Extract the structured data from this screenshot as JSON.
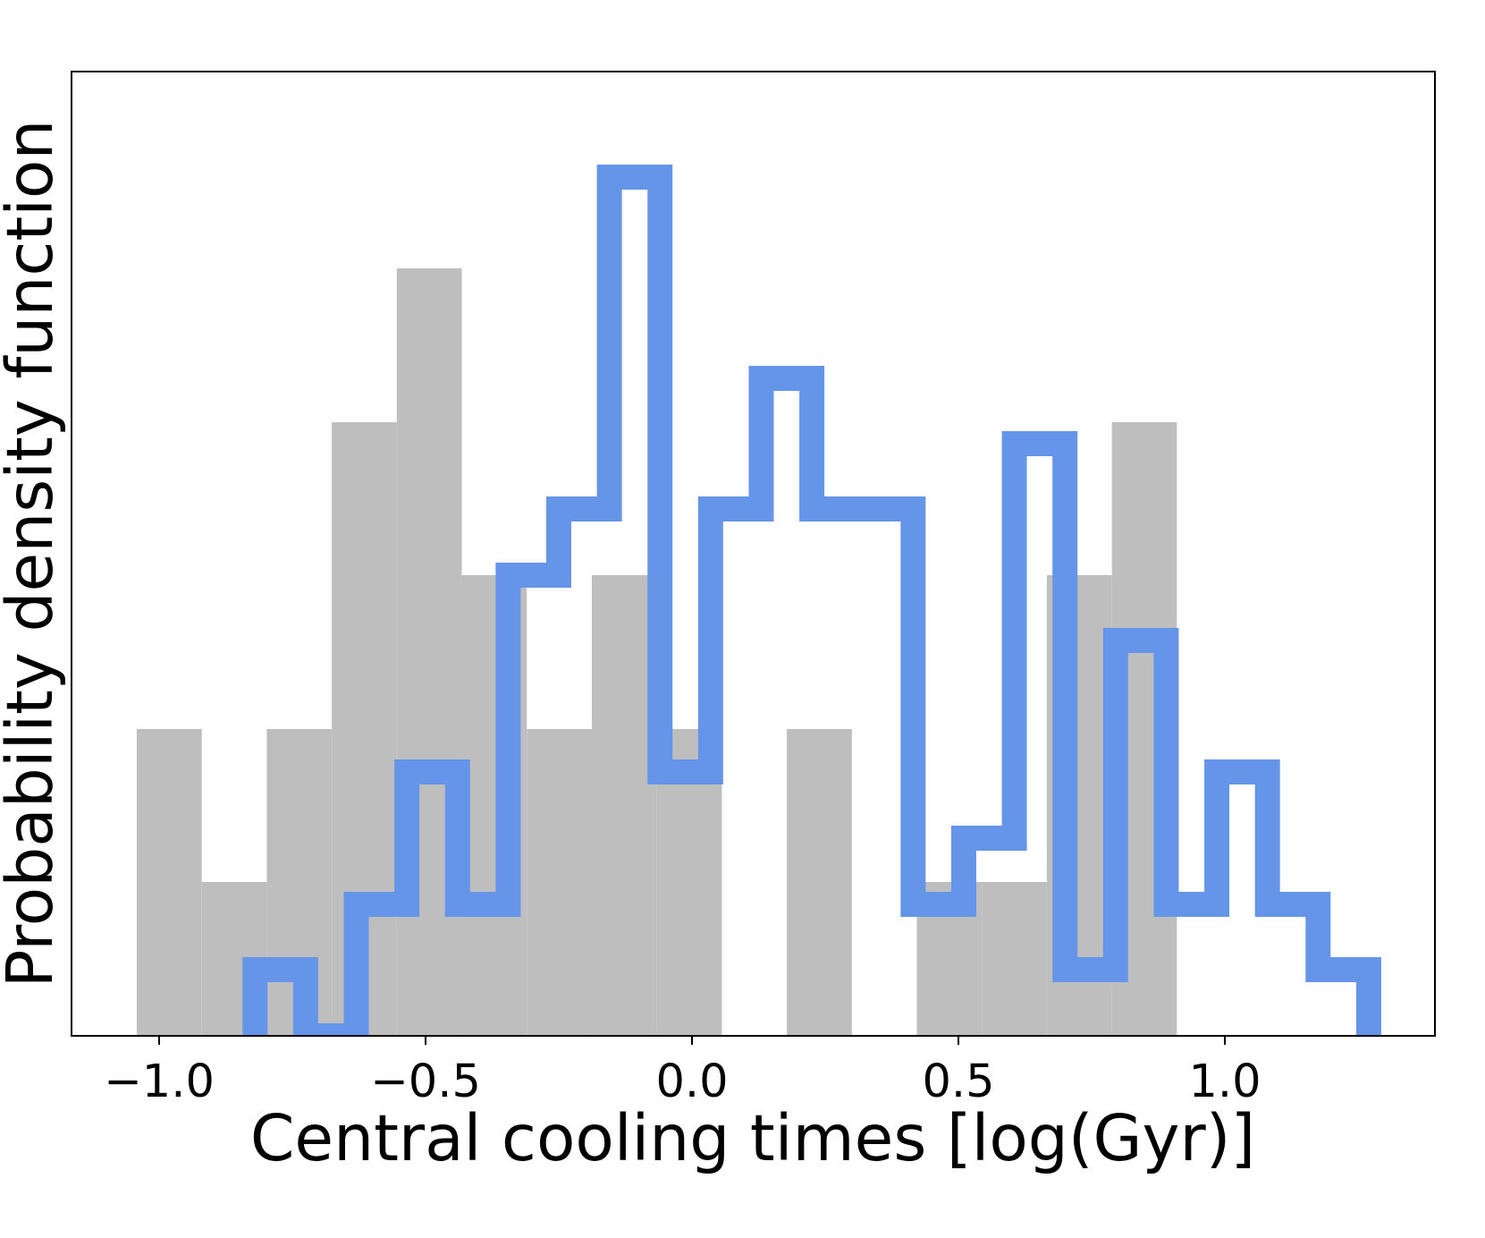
{
  "chart_data": {
    "type": "histogram",
    "xlabel": "Central cooling times [log(Gyr)]",
    "ylabel": "Probability density function",
    "xlim": [
      -1.16,
      1.4
    ],
    "ylim": [
      0,
      1.0
    ],
    "xticks": [
      -1.0,
      -0.5,
      0.0,
      0.5,
      1.0
    ],
    "xtick_labels": [
      "−1.0",
      "−0.5",
      "0.0",
      "0.5",
      "1.0"
    ],
    "yticks_visible": false,
    "series": [
      {
        "name": "grey filled histogram",
        "style": "filled",
        "color": "#bebebe",
        "bin_edges": [
          -1.042,
          -0.92,
          -0.798,
          -0.676,
          -0.554,
          -0.432,
          -0.31,
          -0.188,
          -0.066,
          0.056,
          0.178,
          0.3,
          0.422,
          0.544,
          0.666,
          0.788,
          0.91
        ],
        "values": [
          0.343,
          0.172,
          0.343,
          0.686,
          0.858,
          0.515,
          0.343,
          0.515,
          0.343,
          0.0,
          0.343,
          0.0,
          0.172,
          0.172,
          0.515,
          0.686
        ]
      },
      {
        "name": "blue step histogram",
        "style": "step",
        "color": "#6495e9",
        "bin_edges": [
          -0.82,
          -0.725,
          -0.63,
          -0.535,
          -0.44,
          -0.345,
          -0.25,
          -0.155,
          -0.06,
          0.035,
          0.13,
          0.225,
          0.32,
          0.415,
          0.51,
          0.605,
          0.7,
          0.795,
          0.89,
          0.985,
          1.08,
          1.175,
          1.27
        ],
        "values": [
          0.074,
          0.0,
          0.147,
          0.295,
          0.147,
          0.515,
          0.589,
          0.96,
          0.295,
          0.589,
          0.735,
          0.589,
          0.589,
          0.147,
          0.221,
          0.662,
          0.074,
          0.442,
          0.147,
          0.295,
          0.147,
          0.074
        ]
      }
    ]
  }
}
